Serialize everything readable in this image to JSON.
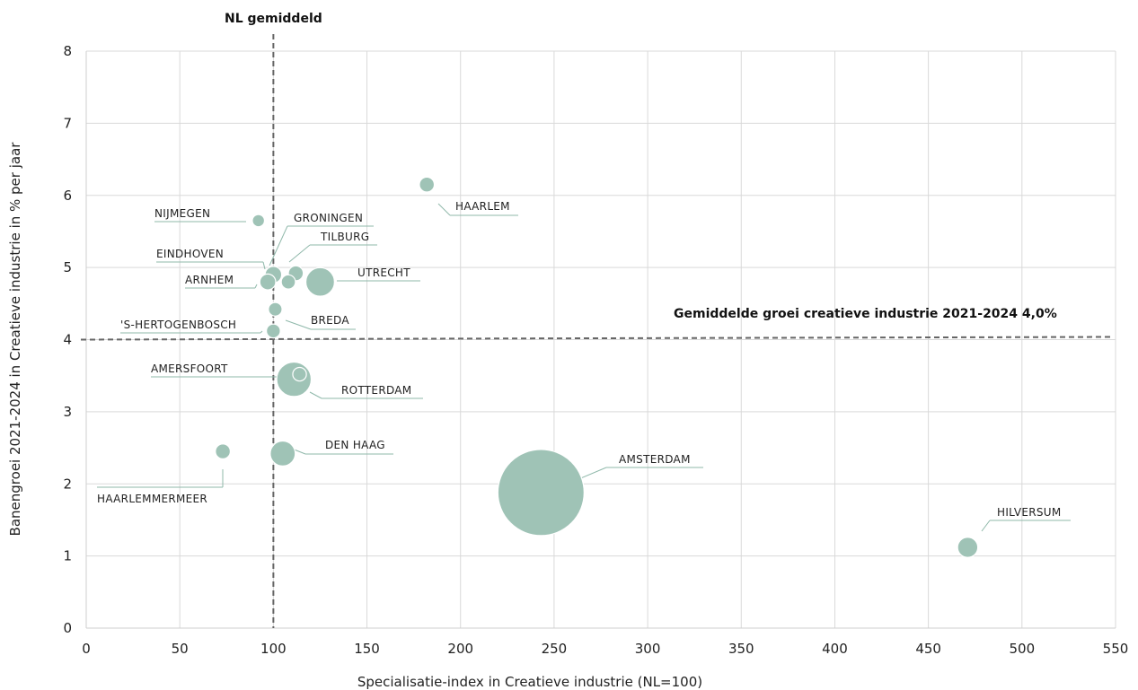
{
  "chart_data": {
    "type": "scatter",
    "title": "",
    "xlabel": "Specialisatie-index in Creatieve industrie (NL=100)",
    "ylabel": "Banengroei 2021-2024 in Creatieve industrie  in % per jaar",
    "xlim": [
      0,
      550
    ],
    "ylim": [
      0,
      8
    ],
    "x_ticks": [
      "0",
      "50",
      "100",
      "150",
      "200",
      "250",
      "300",
      "350",
      "400",
      "450",
      "500",
      "550"
    ],
    "y_ticks": [
      "0",
      "1",
      "2",
      "3",
      "4",
      "5",
      "6",
      "7",
      "8"
    ],
    "grid": true,
    "bubble_color": "#9fc3b6",
    "reference_lines": {
      "vertical": {
        "x": 100,
        "label": "NL gemiddeld"
      },
      "horizontal": {
        "y": 4.0,
        "label": "Gemiddelde groei creatieve industrie 2021-2024 4,0%"
      }
    },
    "points": [
      {
        "label": "AMSTERDAM",
        "x": 243,
        "y": 1.88,
        "size": 100
      },
      {
        "label": "ROTTERDAM",
        "x": 111,
        "y": 3.45,
        "size": 16
      },
      {
        "label": "UTRECHT",
        "x": 125,
        "y": 4.8,
        "size": 11
      },
      {
        "label": "DEN HAAG",
        "x": 105,
        "y": 2.42,
        "size": 8.4
      },
      {
        "label": "HILVERSUM",
        "x": 471,
        "y": 1.12,
        "size": 5.5
      },
      {
        "label": "EINDHOVEN",
        "x": 100,
        "y": 4.9,
        "size": 3.7
      },
      {
        "label": "TILBURG",
        "x": 112,
        "y": 4.92,
        "size": 3.0
      },
      {
        "label": "ARNHEM",
        "x": 97,
        "y": 4.8,
        "size": 3.4
      },
      {
        "label": "GRONINGEN",
        "x": 108,
        "y": 4.8,
        "size": 2.7
      },
      {
        "label": "HAARLEM",
        "x": 182,
        "y": 6.15,
        "size": 3.0
      },
      {
        "label": "BREDA",
        "x": 101,
        "y": 4.42,
        "size": 2.5
      },
      {
        "label": "'S-HERTOGENBOSCH",
        "x": 100,
        "y": 4.12,
        "size": 2.6
      },
      {
        "label": "AMERSFOORT",
        "x": 114,
        "y": 3.52,
        "size": 2.5
      },
      {
        "label": "HAARLEMMERMEER",
        "x": 73,
        "y": 2.45,
        "size": 3.0
      },
      {
        "label": "NIJMEGEN",
        "x": 92,
        "y": 5.65,
        "size": 2.0
      }
    ]
  }
}
